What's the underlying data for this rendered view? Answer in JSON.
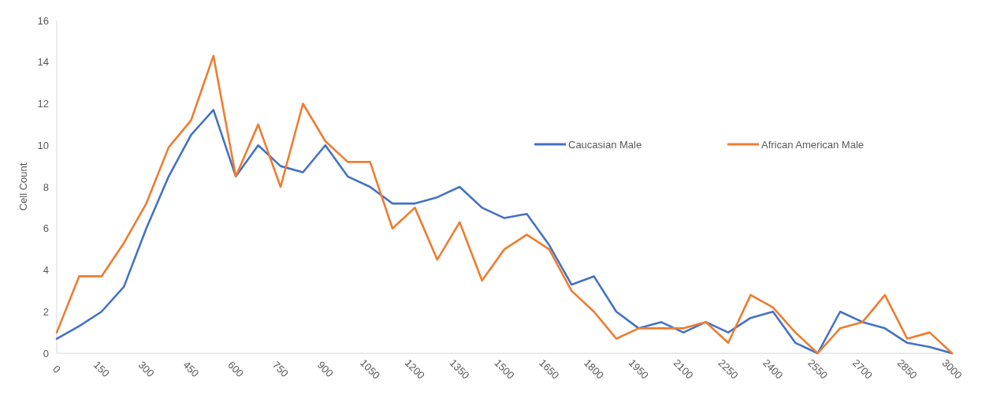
{
  "chart_data": {
    "type": "line",
    "ylabel": "Cell Count",
    "x": [
      0,
      75,
      150,
      225,
      300,
      375,
      450,
      525,
      600,
      675,
      750,
      825,
      900,
      975,
      1050,
      1125,
      1200,
      1275,
      1350,
      1425,
      1500,
      1575,
      1650,
      1725,
      1800,
      1875,
      1950,
      2025,
      2100,
      2175,
      2250,
      2325,
      2400,
      2475,
      2550,
      2625,
      2700,
      2775,
      2850,
      2925,
      3000
    ],
    "series": [
      {
        "name": "Caucasian Male",
        "color": "#4472c4",
        "values": [
          0.7,
          1.3,
          2.0,
          3.2,
          6.0,
          8.5,
          10.5,
          11.7,
          8.5,
          10.0,
          9.0,
          8.7,
          10.0,
          8.5,
          8.0,
          7.2,
          7.2,
          7.5,
          8.0,
          7.0,
          6.5,
          6.7,
          5.2,
          3.3,
          3.7,
          2.0,
          1.2,
          1.5,
          1.0,
          1.5,
          1.0,
          1.7,
          2.0,
          0.5,
          0,
          2.0,
          1.5,
          1.2,
          0.5,
          0.3,
          0
        ]
      },
      {
        "name": "African American Male",
        "color": "#ed7d31",
        "values": [
          1.0,
          3.7,
          3.7,
          5.3,
          7.2,
          9.9,
          11.2,
          14.3,
          8.5,
          11.0,
          8.0,
          12.0,
          10.2,
          9.2,
          9.2,
          6.0,
          7.0,
          4.5,
          6.3,
          3.5,
          5.0,
          5.7,
          5.0,
          3.0,
          2.0,
          0.7,
          1.2,
          1.2,
          1.2,
          1.5,
          0.5,
          2.8,
          2.2,
          1.0,
          0,
          1.2,
          1.5,
          2.8,
          0.7,
          1.0,
          0
        ]
      }
    ],
    "xlim": [
      0,
      3000
    ],
    "xticks": [
      0,
      150,
      300,
      450,
      600,
      750,
      900,
      1050,
      1200,
      1350,
      1500,
      1650,
      1800,
      1950,
      2100,
      2250,
      2400,
      2550,
      2700,
      2850,
      3000
    ],
    "ylim": [
      0,
      16
    ],
    "yticks": [
      0,
      2,
      4,
      6,
      8,
      10,
      12,
      14,
      16
    ],
    "grid": false,
    "legend": "right",
    "marker": "none",
    "line_style": "solid"
  }
}
